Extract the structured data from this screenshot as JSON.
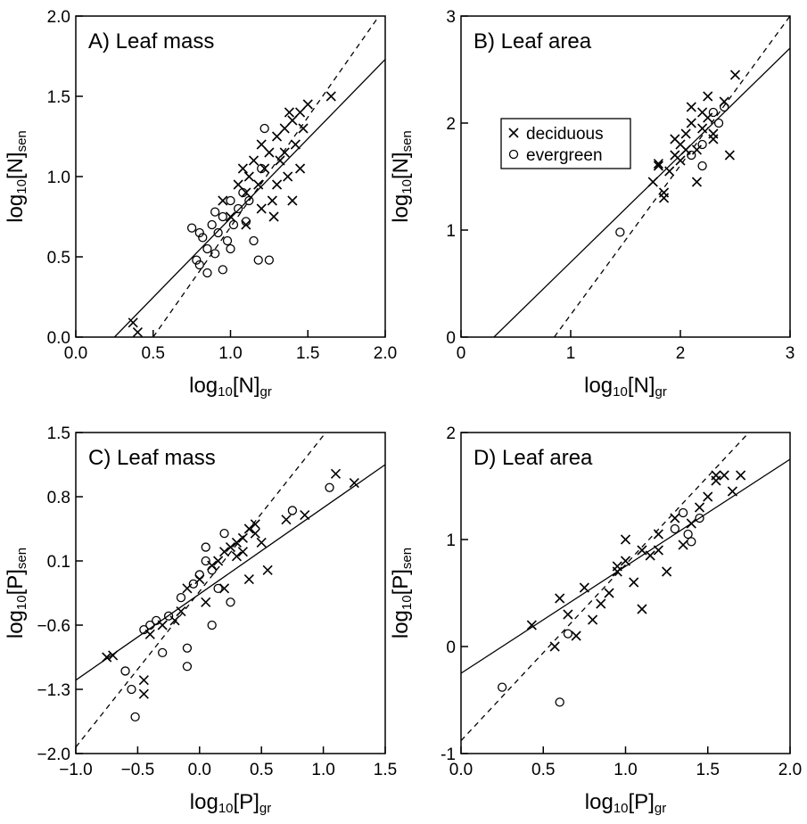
{
  "chart_data": [
    {
      "type": "scatter",
      "title": "A) Leaf mass",
      "xlabel": [
        "log",
        "10",
        "[N]",
        "gr"
      ],
      "ylabel": [
        "log",
        "10",
        "[N]",
        "sen"
      ],
      "xlim": [
        0,
        2
      ],
      "ylim": [
        0,
        2
      ],
      "xticks": [
        {
          "value": 0,
          "label": "0.0"
        },
        {
          "value": 0.5,
          "label": "0.5"
        },
        {
          "value": 1,
          "label": "1.0"
        },
        {
          "value": 1.5,
          "label": "1.5"
        },
        {
          "value": 2,
          "label": "2.0"
        }
      ],
      "yticks": [
        {
          "value": 0,
          "label": "0.0"
        },
        {
          "value": 0.5,
          "label": "0.5"
        },
        {
          "value": 1,
          "label": "1.0"
        },
        {
          "value": 1.5,
          "label": "1.5"
        },
        {
          "value": 2,
          "label": "2.0"
        }
      ],
      "lines": [
        {
          "style": "solid",
          "x": [
            0.25,
            2.0
          ],
          "y": [
            0,
            1.73
          ]
        },
        {
          "style": "dashed",
          "x": [
            0.5,
            1.96
          ],
          "y": [
            0,
            2.0
          ]
        }
      ],
      "series": [
        {
          "marker": "x",
          "color": "#000000",
          "x": [
            0.37,
            0.4,
            0.95,
            1.0,
            1.05,
            1.08,
            1.1,
            1.12,
            1.15,
            1.18,
            1.2,
            1.22,
            1.25,
            1.27,
            1.3,
            1.32,
            1.35,
            1.37,
            1.4,
            1.42,
            1.45,
            1.47,
            1.5,
            1.3,
            1.28,
            1.35,
            1.4,
            1.2,
            1.1,
            1.65,
            1.45,
            1.38
          ],
          "values": [
            0.09,
            0.03,
            0.85,
            0.75,
            0.95,
            1.05,
            0.9,
            1.0,
            1.1,
            0.95,
            1.2,
            1.05,
            1.15,
            0.85,
            1.25,
            1.1,
            1.3,
            1.0,
            1.35,
            1.2,
            1.4,
            1.3,
            1.45,
            0.95,
            0.75,
            1.15,
            0.85,
            0.8,
            0.7,
            1.5,
            1.05,
            1.4
          ]
        },
        {
          "marker": "o",
          "color": "#000000",
          "x": [
            0.75,
            0.78,
            0.8,
            0.82,
            0.85,
            0.88,
            0.9,
            0.92,
            0.95,
            0.98,
            1.0,
            1.02,
            1.05,
            1.08,
            1.1,
            1.15,
            1.2,
            1.25,
            0.85,
            0.9,
            1.0,
            1.18,
            1.22,
            0.8,
            1.12,
            0.95
          ],
          "values": [
            0.68,
            0.48,
            0.45,
            0.62,
            0.55,
            0.7,
            0.52,
            0.65,
            0.75,
            0.6,
            0.85,
            0.7,
            0.8,
            0.9,
            0.72,
            0.6,
            1.05,
            0.48,
            0.4,
            0.78,
            0.55,
            0.48,
            1.3,
            0.65,
            0.85,
            0.42
          ]
        }
      ]
    },
    {
      "type": "scatter",
      "title": "B) Leaf area",
      "xlabel": [
        "log",
        "10",
        "[N]",
        "gr"
      ],
      "ylabel": [
        "log",
        "10",
        "[N]",
        "sen"
      ],
      "xlim": [
        0,
        3
      ],
      "ylim": [
        0,
        3
      ],
      "xticks": [
        0,
        1,
        2,
        3
      ],
      "yticks": [
        0,
        1,
        2,
        3
      ],
      "legend": "upper left",
      "lines": [
        {
          "style": "solid",
          "x": [
            0.3,
            3.0
          ],
          "y": [
            0,
            2.7
          ]
        },
        {
          "style": "dashed",
          "x": [
            0.85,
            3.0
          ],
          "y": [
            0,
            3.0
          ]
        }
      ],
      "series": [
        {
          "name": "deciduous",
          "marker": "x",
          "color": "#000000",
          "x": [
            1.75,
            1.8,
            1.85,
            1.9,
            1.95,
            2.0,
            2.05,
            2.1,
            2.15,
            2.2,
            2.25,
            2.3,
            2.4,
            2.5,
            1.85,
            2.15,
            2.2,
            2.45,
            2.0,
            2.1,
            2.25,
            1.95,
            2.05,
            2.3,
            1.8
          ],
          "values": [
            1.45,
            1.6,
            1.35,
            1.55,
            1.7,
            1.8,
            1.9,
            2.0,
            1.45,
            2.1,
            2.25,
            1.85,
            2.2,
            2.45,
            1.3,
            1.75,
            1.95,
            1.7,
            1.65,
            2.15,
            2.05,
            1.85,
            1.75,
            1.9,
            1.62
          ]
        },
        {
          "name": "evergreen",
          "marker": "o",
          "color": "#000000",
          "x": [
            1.45,
            2.2,
            2.3,
            2.35,
            2.4,
            2.1,
            2.2
          ],
          "values": [
            0.98,
            1.6,
            2.1,
            2.0,
            2.15,
            1.7,
            1.8
          ]
        }
      ]
    },
    {
      "type": "scatter",
      "title": "C) Leaf mass",
      "xlabel": [
        "log",
        "10",
        "[P]",
        "gr"
      ],
      "ylabel": [
        "log",
        "10",
        "[P]",
        "sen"
      ],
      "xlim": [
        -1,
        1.5
      ],
      "ylim": [
        -2,
        1.5
      ],
      "xticks": [
        {
          "value": -1,
          "label": "−1.0"
        },
        {
          "value": -0.5,
          "label": "−0.5"
        },
        {
          "value": 0,
          "label": "0.0"
        },
        {
          "value": 0.5,
          "label": "0.5"
        },
        {
          "value": 1,
          "label": "1.0"
        },
        {
          "value": 1.5,
          "label": "1.5"
        }
      ],
      "yticks": [
        {
          "value": -2,
          "label": "−2.0"
        },
        {
          "value": -1.3,
          "label": "−1.3"
        },
        {
          "value": -0.6,
          "label": "−0.6"
        },
        0.1,
        0.8,
        1.5
      ],
      "lines": [
        {
          "style": "solid",
          "x": [
            -1.0,
            1.5
          ],
          "y": [
            -1.2,
            1.15
          ]
        },
        {
          "style": "dashed",
          "x": [
            -1.0,
            1.02
          ],
          "y": [
            -1.93,
            1.5
          ]
        }
      ],
      "series": [
        {
          "marker": "x",
          "color": "#000000",
          "x": [
            -0.75,
            -0.7,
            -0.45,
            -0.4,
            -0.3,
            -0.2,
            -0.1,
            0.0,
            0.1,
            0.15,
            0.2,
            0.25,
            0.3,
            0.35,
            0.4,
            0.45,
            0.5,
            0.55,
            0.7,
            0.85,
            1.1,
            1.25,
            -0.45,
            -0.15,
            0.2,
            0.3,
            0.4,
            0.45,
            0.05,
            0.35
          ],
          "values": [
            -0.95,
            -0.93,
            -1.2,
            -0.7,
            -0.6,
            -0.55,
            -0.2,
            -0.1,
            0.05,
            0.1,
            0.2,
            0.25,
            0.3,
            0.35,
            0.45,
            0.4,
            0.3,
            0.0,
            0.55,
            0.6,
            1.05,
            0.95,
            -1.35,
            -0.45,
            -0.2,
            0.15,
            -0.1,
            0.5,
            -0.35,
            0.2
          ]
        },
        {
          "marker": "o",
          "color": "#000000",
          "x": [
            -0.6,
            -0.55,
            -0.52,
            -0.45,
            -0.35,
            -0.25,
            -0.15,
            -0.1,
            -0.05,
            0.0,
            0.05,
            0.1,
            0.15,
            0.2,
            -0.1,
            -0.3,
            0.1,
            0.75,
            1.05,
            -0.4,
            0.05,
            0.25
          ],
          "values": [
            -1.1,
            -1.3,
            -1.6,
            -0.65,
            -0.55,
            -0.5,
            -0.3,
            -0.85,
            -0.15,
            -0.05,
            0.1,
            0.0,
            -0.2,
            0.4,
            -1.05,
            -0.9,
            -0.6,
            0.65,
            0.9,
            -0.6,
            0.25,
            -0.35
          ]
        }
      ]
    },
    {
      "type": "scatter",
      "title": "D) Leaf area",
      "xlabel": [
        "log",
        "10",
        "[P]",
        "gr"
      ],
      "ylabel": [
        "log",
        "10",
        "[P]",
        "sen"
      ],
      "xlim": [
        0,
        2
      ],
      "ylim": [
        -1,
        2
      ],
      "xticks": [
        {
          "value": 0,
          "label": "0.0"
        },
        {
          "value": 0.5,
          "label": "0.5"
        },
        {
          "value": 1,
          "label": "1.0"
        },
        {
          "value": 1.5,
          "label": "1.5"
        },
        {
          "value": 2,
          "label": "2.0"
        }
      ],
      "yticks": [
        -1,
        0,
        1,
        2
      ],
      "lines": [
        {
          "style": "solid",
          "x": [
            0,
            2.0
          ],
          "y": [
            -0.25,
            1.75
          ]
        },
        {
          "style": "dashed",
          "x": [
            0,
            1.75
          ],
          "y": [
            -0.88,
            2.0
          ]
        }
      ],
      "series": [
        {
          "marker": "x",
          "color": "#000000",
          "x": [
            0.43,
            0.57,
            0.6,
            0.65,
            0.7,
            0.75,
            0.8,
            0.85,
            0.9,
            0.95,
            1.0,
            1.05,
            1.1,
            1.15,
            1.2,
            1.25,
            1.3,
            1.35,
            1.4,
            1.45,
            1.5,
            1.55,
            1.6,
            1.65,
            1.7,
            1.1,
            1.0,
            0.95,
            1.2,
            1.55
          ],
          "values": [
            0.2,
            0.0,
            0.45,
            0.3,
            0.1,
            0.55,
            0.25,
            0.4,
            0.5,
            0.75,
            1.0,
            0.6,
            0.35,
            0.85,
            1.05,
            0.7,
            1.2,
            0.95,
            1.15,
            1.3,
            1.4,
            1.55,
            1.6,
            1.45,
            1.6,
            0.9,
            0.8,
            0.7,
            0.9,
            1.6
          ]
        },
        {
          "marker": "o",
          "color": "#000000",
          "x": [
            0.25,
            0.6,
            0.65,
            1.35,
            1.38,
            1.4,
            1.45,
            1.3
          ],
          "values": [
            -0.38,
            -0.52,
            0.12,
            1.25,
            1.05,
            0.98,
            1.2,
            1.1
          ]
        }
      ]
    }
  ]
}
